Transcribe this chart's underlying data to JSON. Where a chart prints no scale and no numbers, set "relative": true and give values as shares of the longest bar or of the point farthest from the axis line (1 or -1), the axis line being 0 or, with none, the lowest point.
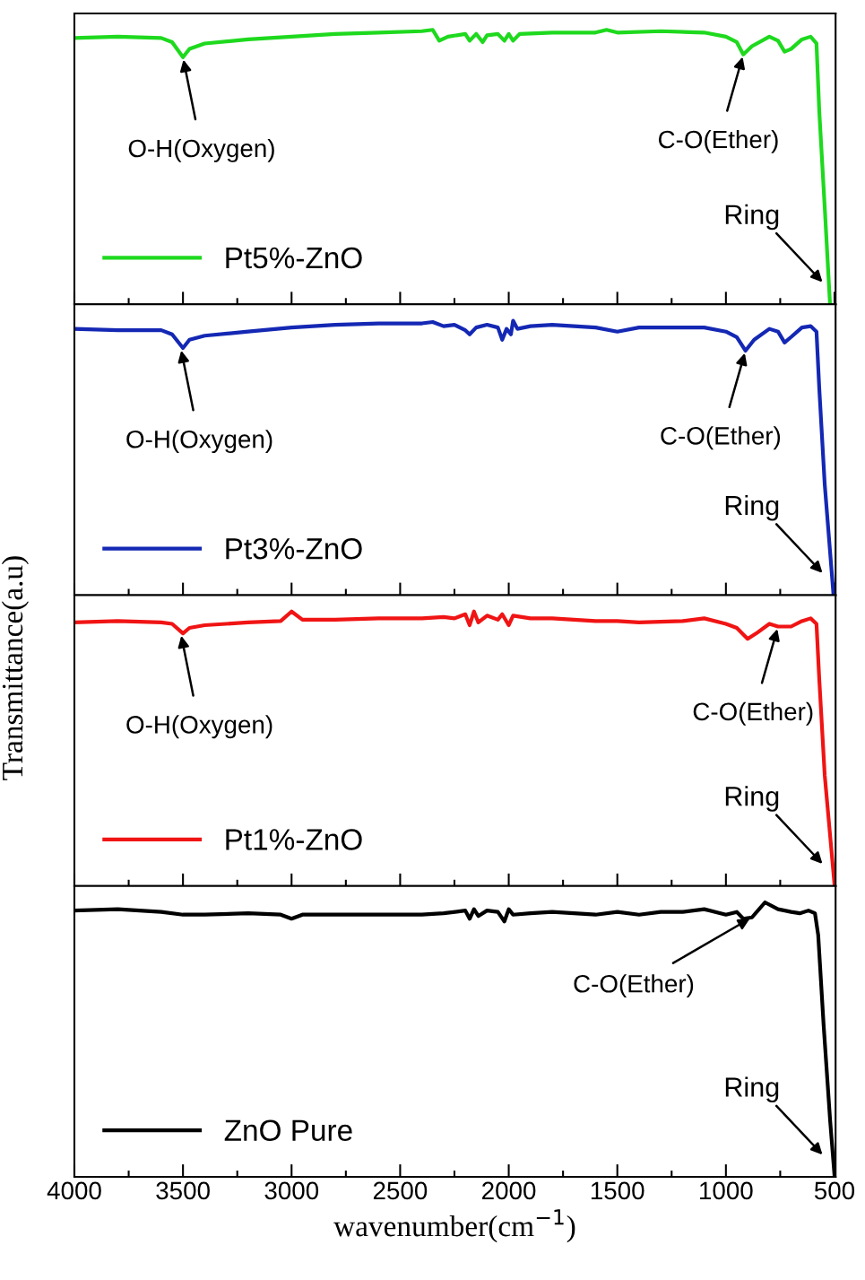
{
  "chart_data": [
    {
      "type": "line",
      "relative": true,
      "xlim": [
        4000,
        495
      ],
      "tick_labels": false,
      "legend": "bottom left",
      "xticks": [
        4000,
        {
          "value": 3750,
          "label": null
        },
        3500,
        {
          "value": 3250,
          "label": null
        },
        3000,
        {
          "value": 2750,
          "label": null
        },
        2500,
        {
          "value": 2250,
          "label": null
        },
        2000,
        {
          "value": 1750,
          "label": null
        },
        1500,
        {
          "value": 1250,
          "label": null
        },
        1000,
        {
          "value": 750,
          "label": null
        },
        500
      ],
      "series": [
        {
          "name": "Pt5%-ZnO",
          "color": "#1ed91e",
          "x": [
            4000,
            3800,
            3600,
            3550,
            3500,
            3470,
            3400,
            3200,
            3000,
            2800,
            2600,
            2400,
            2350,
            2320,
            2280,
            2200,
            2180,
            2150,
            2120,
            2100,
            2050,
            2020,
            2000,
            1980,
            1950,
            1800,
            1600,
            1550,
            1500,
            1300,
            1100,
            1000,
            950,
            920,
            880,
            800,
            760,
            730,
            700,
            650,
            610,
            583,
            570,
            545,
            521
          ],
          "values": [
            0.97,
            0.975,
            0.97,
            0.955,
            0.9,
            0.93,
            0.95,
            0.965,
            0.975,
            0.985,
            0.99,
            0.995,
            1.0,
            0.96,
            0.975,
            0.985,
            0.96,
            0.985,
            0.955,
            0.98,
            0.985,
            0.96,
            0.985,
            0.96,
            0.985,
            0.99,
            0.99,
            1.0,
            0.99,
            0.995,
            0.99,
            0.975,
            0.955,
            0.91,
            0.94,
            0.975,
            0.96,
            0.92,
            0.93,
            0.965,
            0.975,
            0.95,
            0.7,
            0.35,
            0.0
          ]
        }
      ],
      "annotations": [
        {
          "text": "O-H(Oxygen)",
          "x": 3500,
          "y": 0.9
        },
        {
          "text": "C-O(Ether)",
          "x": 920,
          "y": 0.91
        },
        "Ring"
      ]
    },
    {
      "type": "line",
      "relative": true,
      "xlim": [
        4000,
        495
      ],
      "tick_labels": false,
      "legend": "bottom left",
      "xticks": [
        4000,
        {
          "value": 3750,
          "label": null
        },
        3500,
        {
          "value": 3250,
          "label": null
        },
        3000,
        {
          "value": 2750,
          "label": null
        },
        2500,
        {
          "value": 2250,
          "label": null
        },
        2000,
        {
          "value": 1750,
          "label": null
        },
        1500,
        {
          "value": 1250,
          "label": null
        },
        1000,
        {
          "value": 750,
          "label": null
        },
        500
      ],
      "series": [
        {
          "name": "Pt3%-ZnO",
          "color": "#1428b4",
          "x": [
            4000,
            3800,
            3600,
            3550,
            3500,
            3470,
            3400,
            3200,
            3000,
            2800,
            2600,
            2400,
            2350,
            2300,
            2250,
            2200,
            2180,
            2150,
            2100,
            2050,
            2030,
            2010,
            1990,
            1980,
            1960,
            1900,
            1800,
            1700,
            1600,
            1500,
            1400,
            1300,
            1200,
            1100,
            1000,
            950,
            910,
            870,
            800,
            760,
            730,
            700,
            650,
            610,
            583,
            570,
            545,
            505
          ],
          "values": [
            0.97,
            0.965,
            0.965,
            0.95,
            0.9,
            0.93,
            0.945,
            0.96,
            0.975,
            0.985,
            0.99,
            0.99,
            0.995,
            0.98,
            0.985,
            0.965,
            0.95,
            0.975,
            0.985,
            0.975,
            0.93,
            0.97,
            0.95,
            1.0,
            0.97,
            0.98,
            0.985,
            0.98,
            0.975,
            0.96,
            0.975,
            0.975,
            0.975,
            0.975,
            0.96,
            0.94,
            0.89,
            0.93,
            0.97,
            0.96,
            0.92,
            0.94,
            0.975,
            0.98,
            0.96,
            0.75,
            0.4,
            0.0
          ]
        }
      ],
      "annotations": [
        {
          "text": "O-H(Oxygen)",
          "x": 3510,
          "y": 0.9
        },
        {
          "text": "C-O(Ether)",
          "x": 910,
          "y": 0.89
        },
        "Ring"
      ]
    },
    {
      "type": "line",
      "relative": true,
      "ylabel": "Transmittance(a.u)",
      "xlim": [
        4000,
        495
      ],
      "tick_labels": false,
      "legend": "bottom left",
      "xticks": [
        4000,
        {
          "value": 3750,
          "label": null
        },
        3500,
        {
          "value": 3250,
          "label": null
        },
        3000,
        {
          "value": 2750,
          "label": null
        },
        2500,
        {
          "value": 2250,
          "label": null
        },
        2000,
        {
          "value": 1750,
          "label": null
        },
        1500,
        {
          "value": 1250,
          "label": null
        },
        1000,
        {
          "value": 750,
          "label": null
        },
        500
      ],
      "series": [
        {
          "name": "Pt1%-ZnO",
          "color": "#f01414",
          "x": [
            4000,
            3800,
            3600,
            3550,
            3500,
            3470,
            3400,
            3200,
            3050,
            3000,
            2950,
            2800,
            2600,
            2400,
            2300,
            2250,
            2200,
            2180,
            2160,
            2140,
            2100,
            2050,
            2030,
            2000,
            1980,
            1900,
            1800,
            1700,
            1600,
            1500,
            1400,
            1200,
            1100,
            1000,
            950,
            900,
            860,
            800,
            760,
            700,
            650,
            610,
            583,
            570,
            545,
            500
          ],
          "values": [
            0.96,
            0.965,
            0.96,
            0.955,
            0.92,
            0.94,
            0.95,
            0.96,
            0.965,
            1.0,
            0.97,
            0.97,
            0.975,
            0.975,
            0.98,
            0.975,
            0.99,
            0.95,
            1.0,
            0.96,
            0.985,
            0.97,
            0.99,
            0.95,
            0.985,
            0.975,
            0.975,
            0.97,
            0.965,
            0.965,
            0.96,
            0.965,
            0.975,
            0.955,
            0.94,
            0.9,
            0.92,
            0.955,
            0.945,
            0.945,
            0.965,
            0.975,
            0.955,
            0.75,
            0.4,
            0.0
          ]
        }
      ],
      "annotations": [
        {
          "text": "O-H(Oxygen)",
          "x": 3510,
          "y": 0.92
        },
        {
          "text": "C-O(Ether)",
          "x": 760,
          "y": 0.945
        },
        "Ring"
      ]
    },
    {
      "type": "line",
      "relative": true,
      "xlim": [
        4000,
        495
      ],
      "tick_labels": "x",
      "legend": "bottom left",
      "xlabel": "wavenumber(cm$^{−1}$)",
      "xticks": [
        4000,
        {
          "value": 3750,
          "label": null
        },
        3500,
        {
          "value": 3250,
          "label": null
        },
        3000,
        {
          "value": 2750,
          "label": null
        },
        2500,
        {
          "value": 2250,
          "label": null
        },
        2000,
        {
          "value": 1750,
          "label": null
        },
        1500,
        {
          "value": 1250,
          "label": null
        },
        1000,
        {
          "value": 750,
          "label": null
        },
        500
      ],
      "series": [
        {
          "name": "ZnO Pure",
          "color": "#000000",
          "x": [
            4000,
            3800,
            3700,
            3600,
            3500,
            3400,
            3200,
            3050,
            3000,
            2950,
            2800,
            2600,
            2400,
            2300,
            2200,
            2180,
            2160,
            2140,
            2100,
            2050,
            2020,
            2000,
            1980,
            1900,
            1800,
            1600,
            1500,
            1400,
            1300,
            1200,
            1100,
            1000,
            950,
            920,
            880,
            820,
            760,
            700,
            660,
            620,
            590,
            575,
            550,
            520,
            500
          ],
          "values": [
            0.97,
            0.975,
            0.97,
            0.965,
            0.955,
            0.955,
            0.96,
            0.955,
            0.94,
            0.955,
            0.955,
            0.955,
            0.955,
            0.96,
            0.97,
            0.94,
            0.975,
            0.95,
            0.97,
            0.965,
            0.93,
            0.975,
            0.955,
            0.96,
            0.965,
            0.955,
            0.965,
            0.955,
            0.965,
            0.965,
            0.975,
            0.955,
            0.965,
            0.94,
            0.945,
            1.0,
            0.975,
            0.965,
            0.96,
            0.97,
            0.96,
            0.88,
            0.55,
            0.2,
            0.0
          ]
        }
      ],
      "annotations": [
        {
          "text": "C-O(Ether)",
          "x": 880,
          "y": 0.945
        },
        "Ring"
      ]
    }
  ]
}
